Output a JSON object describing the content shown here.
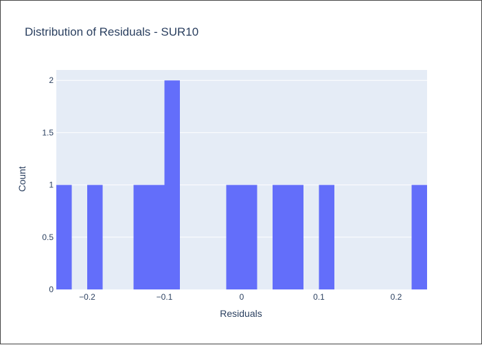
{
  "chart_data": {
    "type": "bar",
    "title": "Distribution of Residuals - SUR10",
    "xlabel": "Residuals",
    "ylabel": "Count",
    "bin_width": 0.02,
    "bins": [
      {
        "start": -0.24,
        "end": -0.22,
        "count": 1
      },
      {
        "start": -0.22,
        "end": -0.2,
        "count": 0
      },
      {
        "start": -0.2,
        "end": -0.18,
        "count": 1
      },
      {
        "start": -0.18,
        "end": -0.16,
        "count": 0
      },
      {
        "start": -0.16,
        "end": -0.14,
        "count": 0
      },
      {
        "start": -0.14,
        "end": -0.12,
        "count": 1
      },
      {
        "start": -0.12,
        "end": -0.1,
        "count": 1
      },
      {
        "start": -0.1,
        "end": -0.08,
        "count": 2
      },
      {
        "start": -0.08,
        "end": -0.06,
        "count": 0
      },
      {
        "start": -0.06,
        "end": -0.04,
        "count": 0
      },
      {
        "start": -0.04,
        "end": -0.02,
        "count": 0
      },
      {
        "start": -0.02,
        "end": 0.0,
        "count": 1
      },
      {
        "start": 0.0,
        "end": 0.02,
        "count": 1
      },
      {
        "start": 0.02,
        "end": 0.04,
        "count": 0
      },
      {
        "start": 0.04,
        "end": 0.06,
        "count": 1
      },
      {
        "start": 0.06,
        "end": 0.08,
        "count": 1
      },
      {
        "start": 0.08,
        "end": 0.1,
        "count": 0
      },
      {
        "start": 0.1,
        "end": 0.12,
        "count": 1
      },
      {
        "start": 0.12,
        "end": 0.14,
        "count": 0
      },
      {
        "start": 0.14,
        "end": 0.16,
        "count": 0
      },
      {
        "start": 0.16,
        "end": 0.18,
        "count": 0
      },
      {
        "start": 0.18,
        "end": 0.2,
        "count": 0
      },
      {
        "start": 0.2,
        "end": 0.22,
        "count": 0
      },
      {
        "start": 0.22,
        "end": 0.24,
        "count": 1
      }
    ],
    "xlim": [
      -0.24,
      0.24
    ],
    "ylim": [
      0,
      2.1
    ],
    "x_ticks": [
      {
        "value": -0.2,
        "label": "−0.2"
      },
      {
        "value": -0.1,
        "label": "−0.1"
      },
      {
        "value": 0,
        "label": "0"
      },
      {
        "value": 0.1,
        "label": "0.1"
      },
      {
        "value": 0.2,
        "label": "0.2"
      }
    ],
    "y_ticks": [
      {
        "value": 0,
        "label": "0"
      },
      {
        "value": 0.5,
        "label": "0.5"
      },
      {
        "value": 1,
        "label": "1"
      },
      {
        "value": 1.5,
        "label": "1.5"
      },
      {
        "value": 2,
        "label": "2"
      }
    ],
    "grid": true,
    "colors": {
      "bar": "#636efa",
      "plot_background": "#e5ecf6",
      "gridline": "#ffffff",
      "text": "#2a3f5f"
    }
  }
}
